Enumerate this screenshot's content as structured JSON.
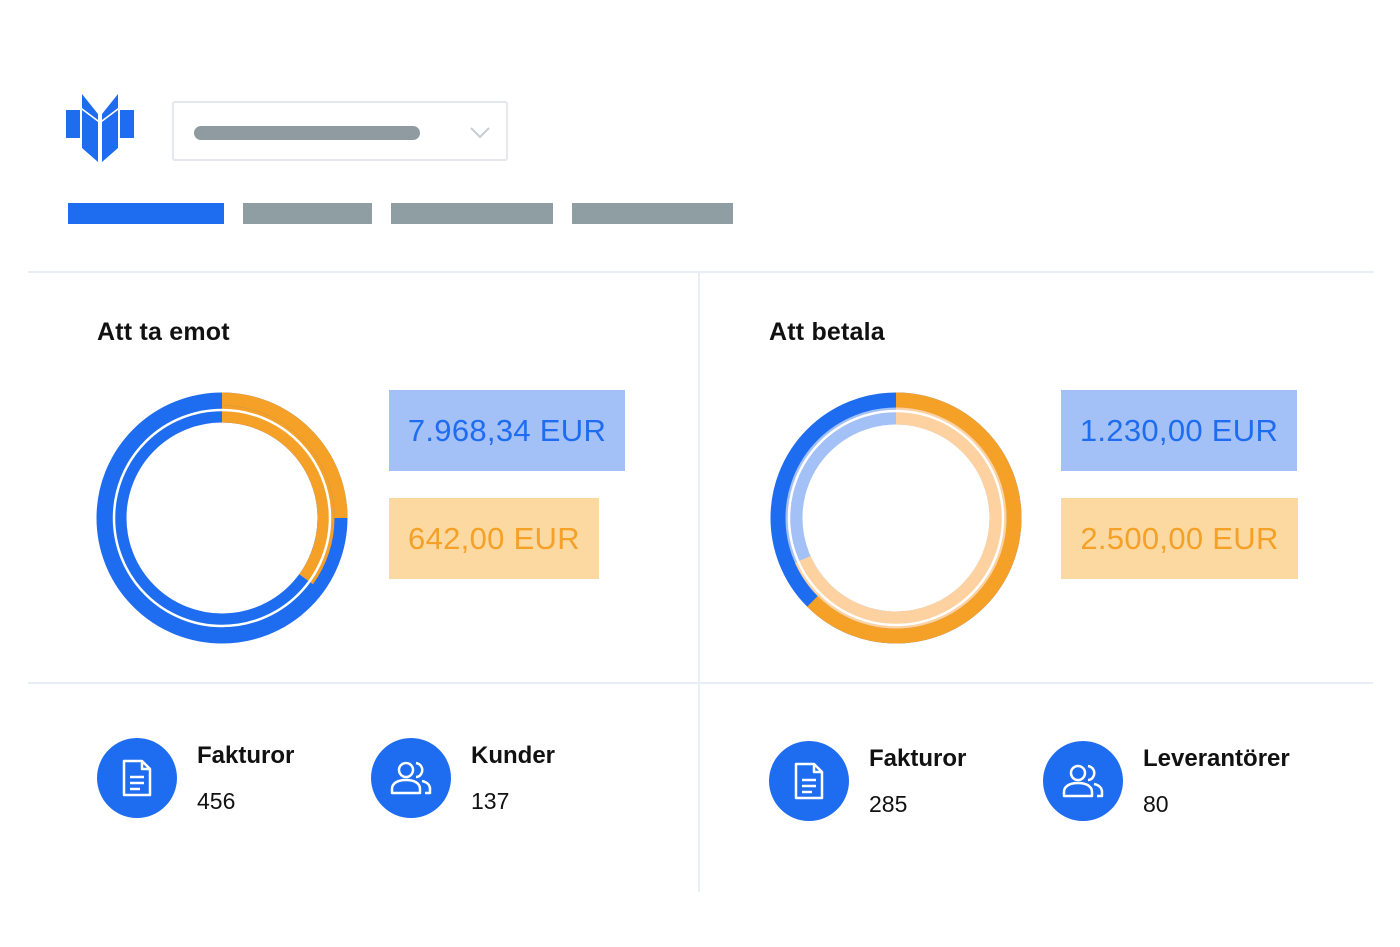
{
  "header": {
    "logo_icon": "butterfly-logo-icon",
    "dropdown_icon": "chevron-down-icon",
    "tabs": [
      {
        "state": "active"
      },
      {
        "state": "inactive"
      },
      {
        "state": "inactive"
      },
      {
        "state": "inactive"
      }
    ]
  },
  "colors": {
    "accent_blue": "#1e6cf0",
    "light_blue": "#a4c1f7",
    "accent_orange": "#f5a027",
    "light_orange": "#fdd9a2",
    "placeholder_gray": "#8f9ba0"
  },
  "receivable": {
    "title": "Att ta emot",
    "amount_blue": "7.968,34 EUR",
    "amount_orange": "642,00 EUR",
    "stats": [
      {
        "label": "Fakturor",
        "value": "456",
        "icon": "document-icon"
      },
      {
        "label": "Kunder",
        "value": "137",
        "icon": "users-icon"
      }
    ]
  },
  "payable": {
    "title": "Att betala",
    "amount_blue": "1.230,00 EUR",
    "amount_orange": "2.500,00 EUR",
    "stats": [
      {
        "label": "Fakturor",
        "value": "285",
        "icon": "document-icon"
      },
      {
        "label": "Leverantörer",
        "value": "80",
        "icon": "users-icon"
      }
    ]
  }
}
